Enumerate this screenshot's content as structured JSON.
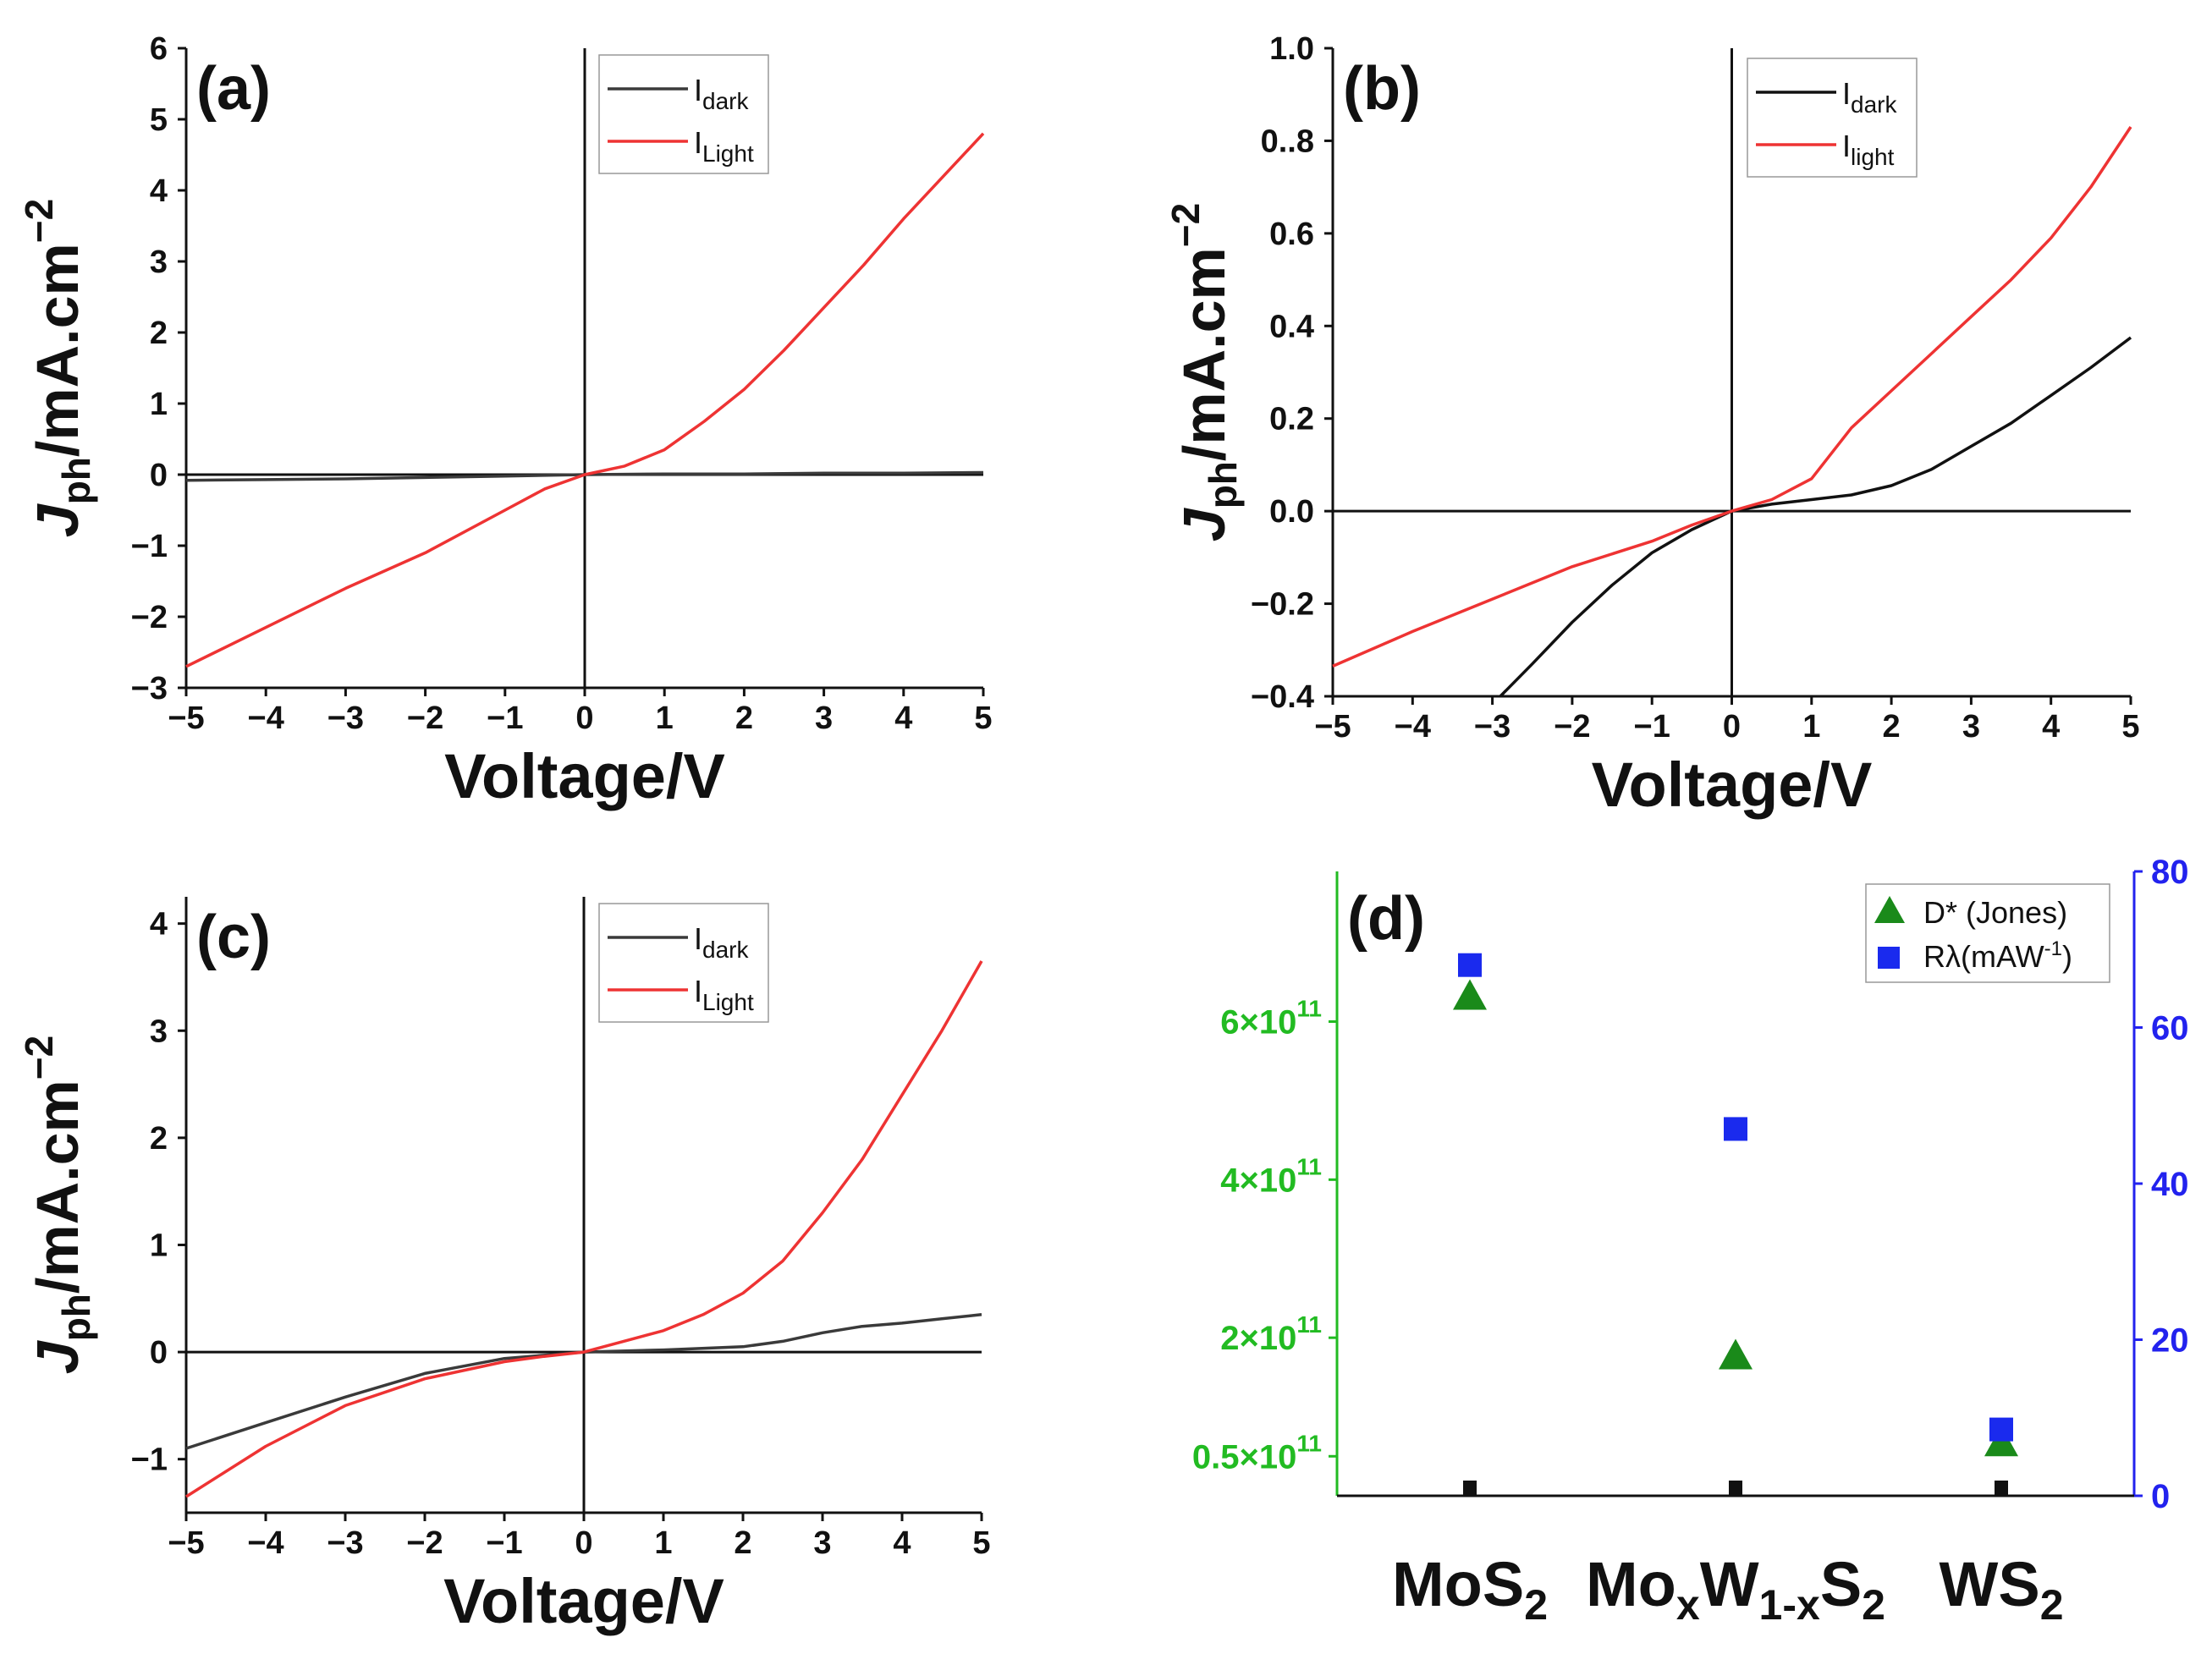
{
  "chart_data": [
    {
      "type": "line",
      "panel_label": "(a)",
      "xlabel": "Voltage/V",
      "ylabel_main": "J",
      "ylabel_sub": "ph",
      "ylabel_rest": "/mA.cm",
      "ylabel_sup": "−2",
      "xlim": [
        -5,
        5
      ],
      "ylim": [
        -3,
        6
      ],
      "xticks": [
        "−5",
        "−4",
        "−3",
        "−2",
        "−1",
        "0",
        "1",
        "2",
        "3",
        "4",
        "5"
      ],
      "yticks": [
        "−3",
        "−2",
        "−1",
        "0",
        "1",
        "2",
        "3",
        "4",
        "5",
        "6"
      ],
      "legend": [
        {
          "main": "I",
          "sub": "dark"
        },
        {
          "main": "I",
          "sub": "Light"
        }
      ],
      "series": [
        {
          "name": "Idark",
          "color": "#3a3a3a",
          "x": [
            -5,
            -4,
            -3,
            -2,
            -1,
            0,
            1,
            2,
            3,
            4,
            5
          ],
          "y": [
            -0.08,
            -0.07,
            -0.06,
            -0.04,
            -0.02,
            0,
            0.01,
            0.01,
            0.02,
            0.02,
            0.03
          ]
        },
        {
          "name": "ILight",
          "color": "#ee3333",
          "x": [
            -5,
            -4,
            -3,
            -2,
            -1,
            -0.5,
            0,
            0.5,
            1,
            1.5,
            2,
            2.5,
            3,
            3.5,
            4,
            4.5,
            5
          ],
          "y": [
            -2.7,
            -2.15,
            -1.6,
            -1.1,
            -0.5,
            -0.2,
            0,
            0.12,
            0.35,
            0.75,
            1.2,
            1.75,
            2.35,
            2.95,
            3.6,
            4.2,
            4.8
          ]
        }
      ]
    },
    {
      "type": "line",
      "panel_label": "(b)",
      "xlabel": "Voltage/V",
      "ylabel_main": "J",
      "ylabel_sub": "ph",
      "ylabel_rest": "/mA.cm",
      "ylabel_sup": "−2",
      "xlim": [
        -5,
        5
      ],
      "ylim": [
        -0.4,
        1.0
      ],
      "xticks": [
        "−5",
        "−4",
        "−3",
        "−2",
        "−1",
        "0",
        "1",
        "2",
        "3",
        "4",
        "5"
      ],
      "yticks": [
        "−0.4",
        "−0.2",
        "0.0",
        "0.2",
        "0.4",
        "0.6",
        "0..8",
        "1.0"
      ],
      "legend": [
        {
          "main": "I",
          "sub": "dark"
        },
        {
          "main": "I",
          "sub": "light"
        }
      ],
      "series": [
        {
          "name": "Idark",
          "color": "#111111",
          "x": [
            -2.9,
            -2.5,
            -2,
            -1.5,
            -1,
            -0.5,
            0,
            0.5,
            1,
            1.5,
            2,
            2.5,
            3,
            3.5,
            4,
            4.5,
            5
          ],
          "y": [
            -0.4,
            -0.33,
            -0.24,
            -0.16,
            -0.09,
            -0.04,
            0,
            0.015,
            0.025,
            0.035,
            0.055,
            0.09,
            0.14,
            0.19,
            0.25,
            0.31,
            0.375
          ]
        },
        {
          "name": "Ilight",
          "color": "#ee3333",
          "x": [
            -5,
            -4,
            -3,
            -2,
            -1,
            -0.5,
            0,
            0.5,
            1,
            1.5,
            2,
            2.5,
            3,
            3.5,
            4,
            4.5,
            5
          ],
          "y": [
            -0.335,
            -0.26,
            -0.19,
            -0.12,
            -0.065,
            -0.03,
            0,
            0.025,
            0.07,
            0.18,
            0.26,
            0.34,
            0.42,
            0.5,
            0.59,
            0.7,
            0.83
          ]
        }
      ]
    },
    {
      "type": "line",
      "panel_label": "(c)",
      "xlabel": "Voltage/V",
      "ylabel_main": "J",
      "ylabel_sub": "ph",
      "ylabel_rest": "/mA.cm",
      "ylabel_sup": "−2",
      "xlim": [
        -5,
        5
      ],
      "ylim": [
        -1.5,
        4.25
      ],
      "xticks": [
        "−5",
        "−4",
        "−3",
        "−2",
        "−1",
        "0",
        "1",
        "2",
        "3",
        "4",
        "5"
      ],
      "yticks": [
        "−1",
        "0",
        "1",
        "2",
        "3",
        "4"
      ],
      "legend": [
        {
          "main": "I",
          "sub": "dark"
        },
        {
          "main": "I",
          "sub": "Light"
        }
      ],
      "series": [
        {
          "name": "Idark",
          "color": "#3a3a3a",
          "x": [
            -5,
            -4,
            -3,
            -2,
            -1,
            -0.5,
            0,
            1,
            2,
            2.5,
            3,
            3.5,
            4,
            4.5,
            5
          ],
          "y": [
            -0.9,
            -0.66,
            -0.42,
            -0.2,
            -0.06,
            -0.03,
            0,
            0.02,
            0.05,
            0.1,
            0.18,
            0.24,
            0.27,
            0.31,
            0.35
          ]
        },
        {
          "name": "ILight",
          "color": "#ee3333",
          "x": [
            -5,
            -4,
            -3,
            -2,
            -1,
            -0.5,
            0,
            0.5,
            1,
            1.5,
            2,
            2.5,
            3,
            3.5,
            4,
            4.5,
            5
          ],
          "y": [
            -1.35,
            -0.88,
            -0.5,
            -0.25,
            -0.09,
            -0.04,
            0,
            0.1,
            0.2,
            0.35,
            0.55,
            0.85,
            1.3,
            1.8,
            2.4,
            3.0,
            3.65
          ]
        }
      ]
    },
    {
      "type": "scatter",
      "panel_label": "(d)",
      "categories": [
        "MoS2",
        "MoxW1-xS2",
        "WS2"
      ],
      "category_labels": [
        {
          "parts": [
            {
              "t": "MoS"
            },
            {
              "t": "2",
              "sub": true
            }
          ]
        },
        {
          "parts": [
            {
              "t": "Mo"
            },
            {
              "t": "x",
              "sub": true
            },
            {
              "t": "W"
            },
            {
              "t": "1-x",
              "sub": true
            },
            {
              "t": "S"
            },
            {
              "t": "2",
              "sub": true
            }
          ]
        },
        {
          "parts": [
            {
              "t": "WS"
            },
            {
              "t": "2",
              "sub": true
            }
          ]
        }
      ],
      "y_left_ticks": [
        {
          "value": 50000000000.0,
          "mantissa": "0.5×10",
          "exp": "11"
        },
        {
          "value": 200000000000.0,
          "mantissa": "2×10",
          "exp": "11"
        },
        {
          "value": 400000000000.0,
          "mantissa": "4×10",
          "exp": "11"
        },
        {
          "value": 600000000000.0,
          "mantissa": "6×10",
          "exp": "11"
        }
      ],
      "y_right_ticks": [
        "0",
        "20",
        "40",
        "60",
        "80"
      ],
      "ylim_left": [
        0,
        790000000000.0
      ],
      "ylim_right": [
        0,
        80
      ],
      "left_color": "#22bb22",
      "right_color": "#2222ee",
      "legend": [
        {
          "label": "D* (Jones)",
          "marker": "triangle",
          "color": "#1a8a1a"
        },
        {
          "label": "Rλ(mAW",
          "sup": "-1",
          "tail": ")",
          "marker": "square",
          "color": "#1a2aee"
        }
      ],
      "series": [
        {
          "name": "D* (Jones)",
          "axis": "left",
          "marker": "triangle",
          "color": "#1a8a1a",
          "values": [
            630000000000.0,
            175000000000.0,
            65000000000.0
          ]
        },
        {
          "name": "Rλ(mAW-1)",
          "axis": "right",
          "marker": "square",
          "color": "#1a2aee",
          "values": [
            68,
            47,
            8.5
          ]
        }
      ]
    }
  ]
}
